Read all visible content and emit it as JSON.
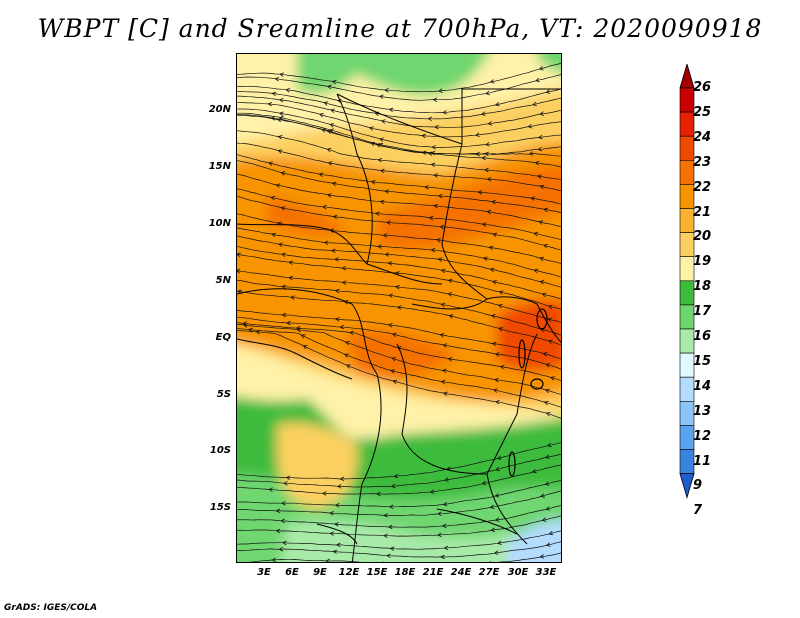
{
  "title": "WBPT [C] and Sreamline at 700hPa, VT: 2020090918",
  "credit": "GrADS: IGES/COLA",
  "lat_labels": [
    "20N",
    "15N",
    "10N",
    "5N",
    "EQ",
    "5S",
    "10S",
    "15S"
  ],
  "lon_labels": [
    "3E",
    "6E",
    "9E",
    "12E",
    "15E",
    "18E",
    "21E",
    "24E",
    "27E",
    "30E",
    "33E"
  ],
  "colorbar": {
    "labels": [
      "26",
      "25",
      "24",
      "23",
      "22",
      "21",
      "20",
      "19",
      "18",
      "17",
      "16",
      "15",
      "14",
      "13",
      "12",
      "11",
      "9",
      "7"
    ],
    "colors": [
      "#a50000",
      "#c80000",
      "#e62000",
      "#f04a00",
      "#f57200",
      "#f79400",
      "#fab230",
      "#fcd060",
      "#fff2a8",
      "#3cbb3c",
      "#6fd66f",
      "#a8eaa8",
      "#e0f8ff",
      "#b4dcff",
      "#8cc4f8",
      "#5aa4ee",
      "#3a84e0",
      "#1c5ed0"
    ]
  },
  "field_colors": {
    "green_dark": "#3cbb3c",
    "green_mid": "#6fd66f",
    "green_light": "#a8eaa8",
    "yellow": "#fff2a8",
    "light_orange": "#fcd060",
    "orange": "#f79400",
    "dark_orange": "#f57200",
    "red_orange": "#f04a00",
    "blue": "#b4dcff"
  }
}
